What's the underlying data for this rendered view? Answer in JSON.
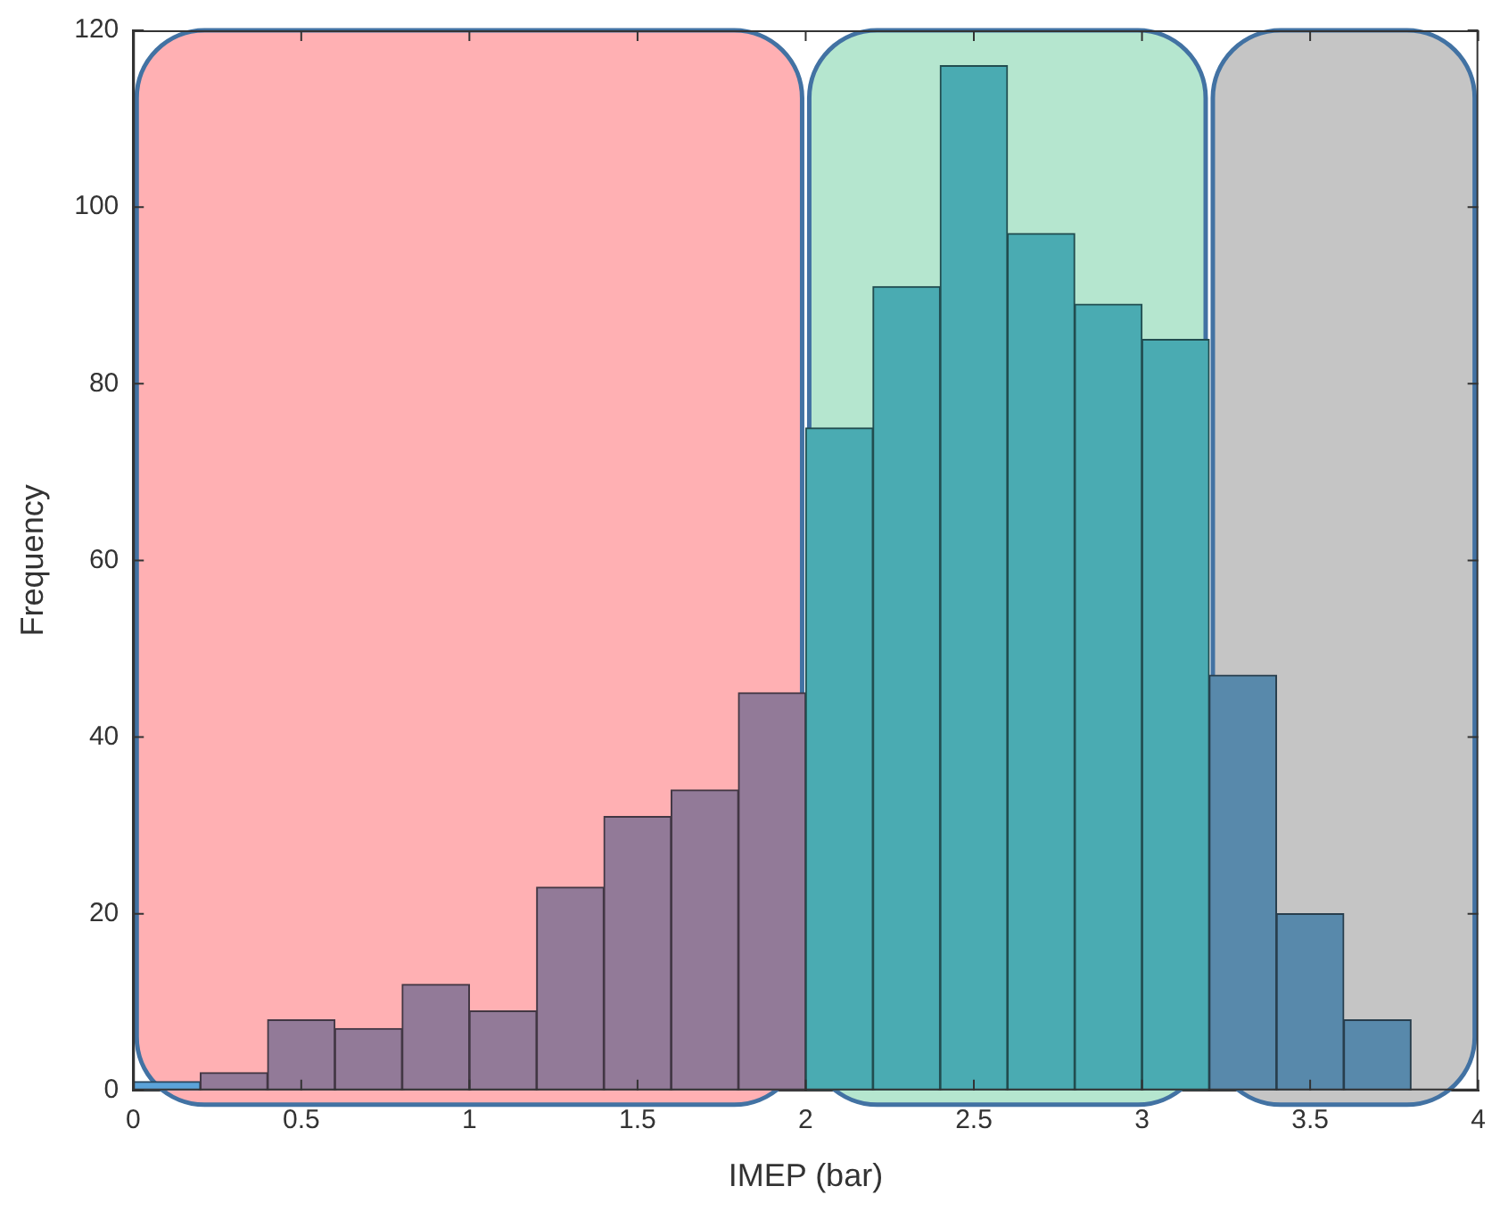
{
  "chart_data": {
    "type": "histogram",
    "xlabel": "IMEP (bar)",
    "ylabel": "Frequency",
    "bins": [
      0,
      0.2,
      0.4,
      0.6,
      0.8,
      1,
      1.2,
      1.4,
      1.6,
      1.8,
      2,
      2.2,
      2.4,
      2.6,
      2.8,
      3,
      3.2,
      3.4,
      3.6,
      3.8
    ],
    "values": [
      1,
      2,
      8,
      7,
      12,
      9,
      23,
      31,
      34,
      45,
      75,
      91,
      116,
      97,
      89,
      85,
      47,
      20,
      8
    ],
    "colors": [
      "#5ba3d9",
      "#927a98",
      "#927a98",
      "#927a98",
      "#927a98",
      "#927a98",
      "#927a98",
      "#927a98",
      "#927a98",
      "#927a98",
      "#4aabb2",
      "#4aabb2",
      "#4aabb2",
      "#4aabb2",
      "#4aabb2",
      "#4aabb2",
      "#5889ab",
      "#5889ab",
      "#5889ab"
    ],
    "xlim": [
      0,
      4
    ],
    "xticks": [
      0,
      0.5,
      1,
      1.5,
      2,
      2.5,
      3,
      3.5,
      4
    ],
    "ylim": [
      0,
      120
    ],
    "yticks": [
      0,
      20,
      40,
      60,
      80,
      100,
      120
    ],
    "bands": [
      {
        "axis": "x",
        "from": 0,
        "to": 2,
        "color": "#ffb0b3"
      },
      {
        "axis": "x",
        "from": 2,
        "to": 3.2,
        "color": "#b5e6cf"
      },
      {
        "axis": "x",
        "from": 3.2,
        "to": 4,
        "color": "#c5c5c5"
      }
    ],
    "grid": false,
    "legend": false
  }
}
